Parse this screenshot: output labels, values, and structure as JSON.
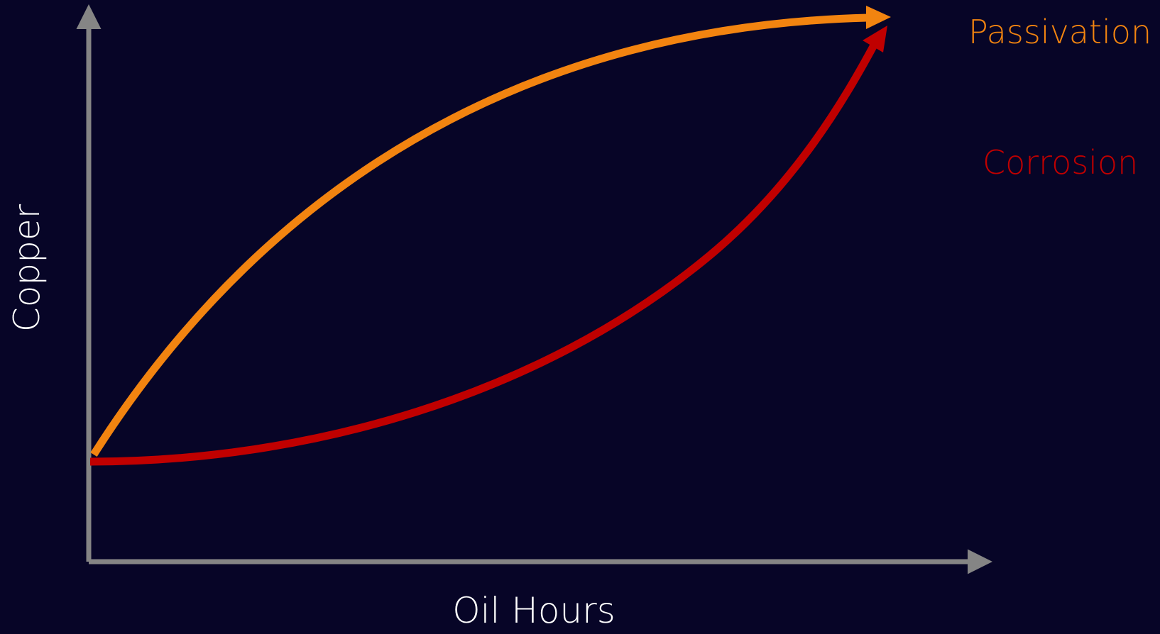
{
  "chart_data": {
    "type": "line",
    "xlabel": "Oil Hours",
    "ylabel": "Copper",
    "series": [
      {
        "name": "Passivation",
        "color": "#f28410",
        "shape": "concave"
      },
      {
        "name": "Corrosion",
        "color": "#c00000",
        "shape": "convex"
      }
    ]
  },
  "colors": {
    "background": "#070527",
    "axis": "#858585",
    "text": "#ffffff"
  }
}
